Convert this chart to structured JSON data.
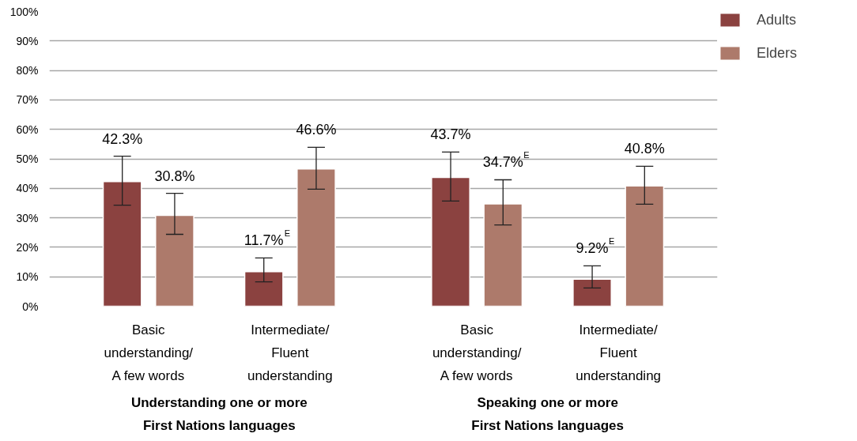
{
  "chart_data": {
    "type": "bar",
    "categories": [
      "Basic\nunderstanding/\nA few words",
      "Intermediate/\nFluent\nunderstanding",
      "Basic\nunderstanding/\nA few words",
      "Intermediate/\nFluent\nunderstanding"
    ],
    "series": [
      {
        "name": "Adults",
        "color": "#8b4240",
        "values": [
          42.3,
          11.7,
          43.7,
          9.2
        ],
        "errors": [
          [
            34.3,
            50.9
          ],
          [
            8.3,
            16.4
          ],
          [
            35.7,
            52.3
          ],
          [
            6.2,
            13.7
          ]
        ],
        "value_labels": [
          "42.3%",
          "11.7%$^{E}$",
          "43.7%",
          "9.2%$^{E}$"
        ]
      },
      {
        "name": "Elders",
        "color": "#ad7a6b",
        "values": [
          30.8,
          46.6,
          34.7,
          40.8
        ],
        "errors": [
          [
            24.4,
            38.3
          ],
          [
            39.7,
            53.9
          ],
          [
            27.6,
            42.9
          ],
          [
            34.6,
            47.5
          ]
        ],
        "value_labels": [
          "30.8%",
          "46.6%",
          "34.7%$^{E}$",
          "40.8%"
        ]
      }
    ],
    "annotations": [
      "Understanding one or more\nFirst Nations languages",
      "Speaking one or more\nFirst Nations languages"
    ],
    "ylim": [
      0,
      100
    ],
    "yticks": [
      {
        "value": 0,
        "label": "0%"
      },
      {
        "value": 10,
        "label": "10%"
      },
      {
        "value": 20,
        "label": "20%"
      },
      {
        "value": 30,
        "label": "30%"
      },
      {
        "value": 40,
        "label": "40%"
      },
      {
        "value": 50,
        "label": "50%"
      },
      {
        "value": 60,
        "label": "60%"
      },
      {
        "value": 70,
        "label": "70%"
      },
      {
        "value": 80,
        "label": "80%"
      },
      {
        "value": 90,
        "label": "90%"
      },
      {
        "value": 100,
        "label": "100%"
      }
    ],
    "grid": "y",
    "legend": "top right"
  }
}
